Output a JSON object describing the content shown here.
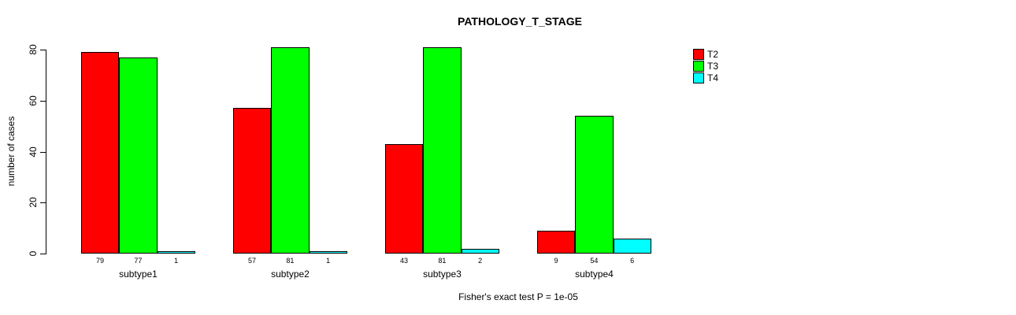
{
  "chart_data": {
    "type": "bar",
    "title": "PATHOLOGY_T_STAGE",
    "xlabel": "",
    "ylabel": "number of cases",
    "categories": [
      "subtype1",
      "subtype2",
      "subtype3",
      "subtype4"
    ],
    "series": [
      {
        "name": "T2",
        "color": "#ff0000",
        "values": [
          79,
          57,
          43,
          9
        ]
      },
      {
        "name": "T3",
        "color": "#00ff00",
        "values": [
          77,
          81,
          81,
          54
        ]
      },
      {
        "name": "T4",
        "color": "#00ffff",
        "values": [
          1,
          1,
          2,
          6
        ]
      }
    ],
    "bar_value_labels": [
      [
        79,
        57,
        43,
        9
      ],
      [
        77,
        81,
        81,
        54
      ],
      [
        1,
        1,
        2,
        6
      ]
    ],
    "yticks": [
      0,
      20,
      40,
      60,
      80
    ],
    "ylim": [
      0,
      80
    ],
    "grid": false,
    "legend_position": "right-of-plot",
    "annotation": "Fisher's exact test P = 1e-05",
    "colors": {
      "axis": "#000000",
      "background": "#ffffff"
    }
  }
}
